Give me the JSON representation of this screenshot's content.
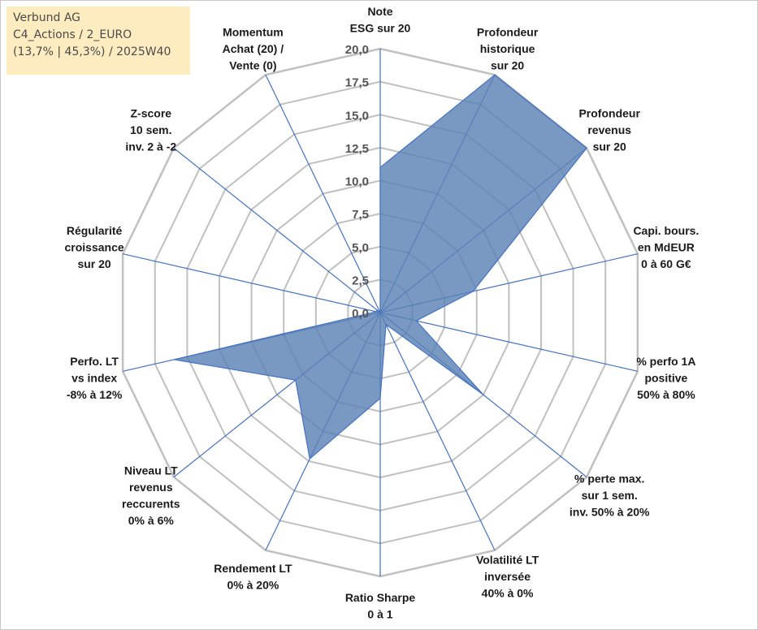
{
  "info": {
    "line1": "Verbund AG",
    "line2": "C4_Actions / 2_EURO",
    "line3": "(13,7% | 45,3%) / 2025W40"
  },
  "colors": {
    "grid": "#c0c0c0",
    "spoke": "#4472c4",
    "fill": "#5b83b6",
    "stroke": "#4472c4",
    "info_bg": "#fdecc0"
  },
  "chart_data": {
    "type": "radar",
    "rmin": 0,
    "rmax": 20,
    "tick_step": 2.5,
    "tick_labels": [
      "0,0",
      "2,5",
      "5,0",
      "7,5",
      "10,0",
      "12,5",
      "15,0",
      "17,5",
      "20,0"
    ],
    "axes": [
      {
        "label": [
          "Note",
          "ESG sur 20"
        ],
        "value": 11
      },
      {
        "label": [
          "Profondeur",
          "historique",
          "sur 20"
        ],
        "value": 20
      },
      {
        "label": [
          "Profondeur",
          "revenus",
          "sur 20"
        ],
        "value": 20
      },
      {
        "label": [
          "Capi. bours.",
          "en MdEUR",
          "0 à 60 G€"
        ],
        "value": 7.2
      },
      {
        "label": [
          "% perfo 1A",
          "positive",
          "50% à 80%"
        ],
        "value": 2.8
      },
      {
        "label": [
          "% perte max.",
          "sur 1 sem.",
          "inv. 50% à 20%"
        ],
        "value": 10
      },
      {
        "label": [
          "Volatilité LT",
          "inversée",
          "40% à 0%"
        ],
        "value": 1
      },
      {
        "label": [
          "Ratio Sharpe",
          "0 à 1"
        ],
        "value": 6.5
      },
      {
        "label": [
          "Rendement LT",
          "0% à 20%"
        ],
        "value": 12.3
      },
      {
        "label": [
          "Niveau LT",
          "revenus",
          "reccurents",
          "0% à 6%"
        ],
        "value": 8.2
      },
      {
        "label": [
          "Perfo. LT",
          "vs index",
          "-8% à 12%"
        ],
        "value": 16
      },
      {
        "label": [
          "Régularité",
          "croissance",
          "sur 20"
        ],
        "value": 0.3
      },
      {
        "label": [
          "Z-score",
          "10 sem.",
          "inv. 2 à -2"
        ],
        "value": 0.3
      },
      {
        "label": [
          "Momentum",
          "Achat (20) /",
          "Vente (0)"
        ],
        "value": 0
      }
    ]
  }
}
